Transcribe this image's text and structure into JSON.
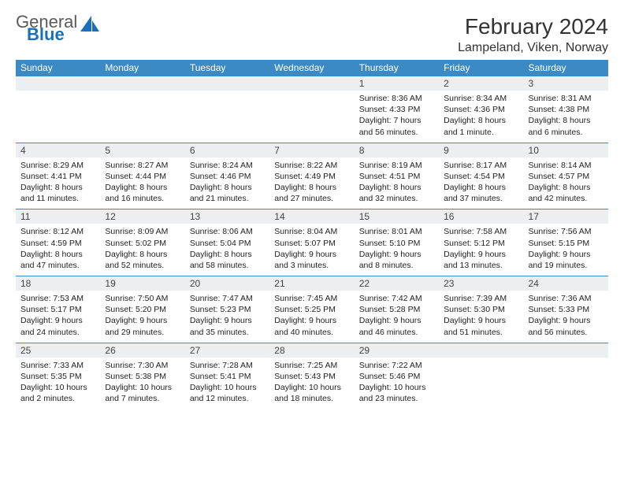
{
  "brand": {
    "line1": "General",
    "line2": "Blue"
  },
  "title": "February 2024",
  "location": "Lampeland, Viken, Norway",
  "colors": {
    "header_bg": "#3b8ac4",
    "header_text": "#ffffff",
    "daynum_bg": "#eceff1",
    "row_border": "#3b8ac4",
    "logo_gray": "#5a5a5a",
    "logo_blue": "#1d6fb8",
    "text": "#1a1a1a",
    "background": "#ffffff"
  },
  "typography": {
    "title_size_pt": 21,
    "location_size_pt": 12,
    "weekday_size_pt": 9,
    "daynum_size_pt": 9,
    "cell_size_pt": 8
  },
  "weekdays": [
    "Sunday",
    "Monday",
    "Tuesday",
    "Wednesday",
    "Thursday",
    "Friday",
    "Saturday"
  ],
  "weeks": [
    [
      null,
      null,
      null,
      null,
      {
        "n": "1",
        "sunrise": "8:36 AM",
        "sunset": "4:33 PM",
        "daylight": "7 hours and 56 minutes."
      },
      {
        "n": "2",
        "sunrise": "8:34 AM",
        "sunset": "4:36 PM",
        "daylight": "8 hours and 1 minute."
      },
      {
        "n": "3",
        "sunrise": "8:31 AM",
        "sunset": "4:38 PM",
        "daylight": "8 hours and 6 minutes."
      }
    ],
    [
      {
        "n": "4",
        "sunrise": "8:29 AM",
        "sunset": "4:41 PM",
        "daylight": "8 hours and 11 minutes."
      },
      {
        "n": "5",
        "sunrise": "8:27 AM",
        "sunset": "4:44 PM",
        "daylight": "8 hours and 16 minutes."
      },
      {
        "n": "6",
        "sunrise": "8:24 AM",
        "sunset": "4:46 PM",
        "daylight": "8 hours and 21 minutes."
      },
      {
        "n": "7",
        "sunrise": "8:22 AM",
        "sunset": "4:49 PM",
        "daylight": "8 hours and 27 minutes."
      },
      {
        "n": "8",
        "sunrise": "8:19 AM",
        "sunset": "4:51 PM",
        "daylight": "8 hours and 32 minutes."
      },
      {
        "n": "9",
        "sunrise": "8:17 AM",
        "sunset": "4:54 PM",
        "daylight": "8 hours and 37 minutes."
      },
      {
        "n": "10",
        "sunrise": "8:14 AM",
        "sunset": "4:57 PM",
        "daylight": "8 hours and 42 minutes."
      }
    ],
    [
      {
        "n": "11",
        "sunrise": "8:12 AM",
        "sunset": "4:59 PM",
        "daylight": "8 hours and 47 minutes."
      },
      {
        "n": "12",
        "sunrise": "8:09 AM",
        "sunset": "5:02 PM",
        "daylight": "8 hours and 52 minutes."
      },
      {
        "n": "13",
        "sunrise": "8:06 AM",
        "sunset": "5:04 PM",
        "daylight": "8 hours and 58 minutes."
      },
      {
        "n": "14",
        "sunrise": "8:04 AM",
        "sunset": "5:07 PM",
        "daylight": "9 hours and 3 minutes."
      },
      {
        "n": "15",
        "sunrise": "8:01 AM",
        "sunset": "5:10 PM",
        "daylight": "9 hours and 8 minutes."
      },
      {
        "n": "16",
        "sunrise": "7:58 AM",
        "sunset": "5:12 PM",
        "daylight": "9 hours and 13 minutes."
      },
      {
        "n": "17",
        "sunrise": "7:56 AM",
        "sunset": "5:15 PM",
        "daylight": "9 hours and 19 minutes."
      }
    ],
    [
      {
        "n": "18",
        "sunrise": "7:53 AM",
        "sunset": "5:17 PM",
        "daylight": "9 hours and 24 minutes."
      },
      {
        "n": "19",
        "sunrise": "7:50 AM",
        "sunset": "5:20 PM",
        "daylight": "9 hours and 29 minutes."
      },
      {
        "n": "20",
        "sunrise": "7:47 AM",
        "sunset": "5:23 PM",
        "daylight": "9 hours and 35 minutes."
      },
      {
        "n": "21",
        "sunrise": "7:45 AM",
        "sunset": "5:25 PM",
        "daylight": "9 hours and 40 minutes."
      },
      {
        "n": "22",
        "sunrise": "7:42 AM",
        "sunset": "5:28 PM",
        "daylight": "9 hours and 46 minutes."
      },
      {
        "n": "23",
        "sunrise": "7:39 AM",
        "sunset": "5:30 PM",
        "daylight": "9 hours and 51 minutes."
      },
      {
        "n": "24",
        "sunrise": "7:36 AM",
        "sunset": "5:33 PM",
        "daylight": "9 hours and 56 minutes."
      }
    ],
    [
      {
        "n": "25",
        "sunrise": "7:33 AM",
        "sunset": "5:35 PM",
        "daylight": "10 hours and 2 minutes."
      },
      {
        "n": "26",
        "sunrise": "7:30 AM",
        "sunset": "5:38 PM",
        "daylight": "10 hours and 7 minutes."
      },
      {
        "n": "27",
        "sunrise": "7:28 AM",
        "sunset": "5:41 PM",
        "daylight": "10 hours and 12 minutes."
      },
      {
        "n": "28",
        "sunrise": "7:25 AM",
        "sunset": "5:43 PM",
        "daylight": "10 hours and 18 minutes."
      },
      {
        "n": "29",
        "sunrise": "7:22 AM",
        "sunset": "5:46 PM",
        "daylight": "10 hours and 23 minutes."
      },
      null,
      null
    ]
  ],
  "labels": {
    "sunrise": "Sunrise:",
    "sunset": "Sunset:",
    "daylight": "Daylight:"
  }
}
